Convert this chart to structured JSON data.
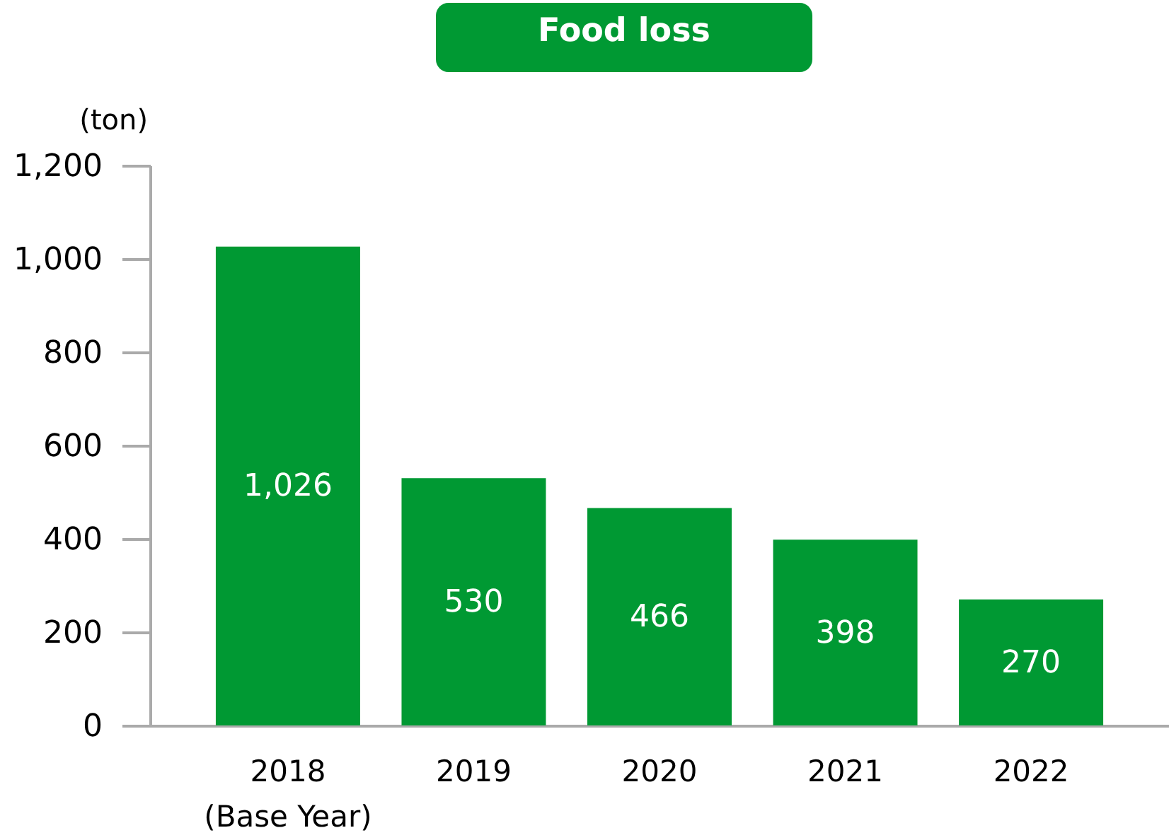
{
  "chart_data": {
    "type": "bar",
    "title": "Food loss",
    "ylabel": "(ton)",
    "categories": [
      "2018\n(Base Year)",
      "2019",
      "2020",
      "2021",
      "2022"
    ],
    "values": [
      1026,
      530,
      466,
      398,
      270
    ],
    "value_labels": [
      "1,026",
      "530",
      "466",
      "398",
      "270"
    ],
    "color": "#009933",
    "ylim": [
      0,
      1200
    ],
    "yticks": [
      0,
      200,
      400,
      600,
      800,
      {
        "value": 1000,
        "label": "1,000"
      },
      {
        "value": 1200,
        "label": "1,200"
      }
    ],
    "grid": false
  }
}
